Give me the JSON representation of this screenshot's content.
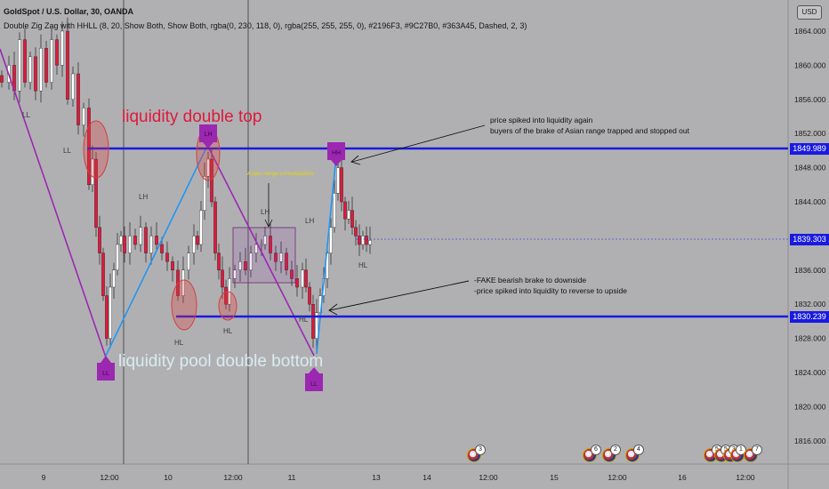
{
  "header": {
    "symbol_line": "GoldSpot / U.S. Dollar, 30, OANDA",
    "indicator_line": "Double Zig Zag with HHLL (8, 20, Show Both, Show Both, rgba(0, 230, 118, 0), rgba(255, 255, 255, 0), #2196F3, #9C27B0, #363A45, Dashed, 2, 3)"
  },
  "currency_button": "USD",
  "price_axis": {
    "ticks": [
      "1864.000",
      "1860.000",
      "1856.000",
      "1852.000",
      "1848.000",
      "1844.000",
      "1836.000",
      "1832.000",
      "1828.000",
      "1824.000",
      "1820.000",
      "1816.000"
    ],
    "resistance_label": "1849.989",
    "current_label": "1839.303",
    "support_label": "1830.239"
  },
  "time_axis": {
    "ticks": [
      "9",
      "12:00",
      "10",
      "12:00",
      "11",
      "13",
      "14",
      "12:00",
      "15",
      "12:00",
      "16",
      "12:00"
    ]
  },
  "annotations": {
    "top_title": "liquidity double top",
    "bottom_title": "liquidity pool double bottom",
    "asian_range": "Asian range consolidation",
    "note_top_line1": "price spiked into liquidity again",
    "note_top_line2": "buyers of the brake of Asian range trapped and stopped out",
    "note_bottom_line1": "-FAKE bearish brake to downside",
    "note_bottom_line2": "-price spiked into liquidity to reverse to upside"
  },
  "swing_labels": {
    "ll1": "LL",
    "ll2": "LL",
    "lh1": "LH",
    "lh2": "LH",
    "lh3": "LH",
    "hl1": "HL",
    "hl2": "HL",
    "hl3": "HL",
    "hl4": "HL",
    "box_ll1": "LL",
    "box_lh": "LH",
    "box_hh": "HH",
    "box_ll2": "LL"
  },
  "event_counts": [
    "3",
    "6",
    "2",
    "4",
    "5",
    "5",
    "3",
    "1",
    "7"
  ],
  "colors": {
    "background": "#b0b0b3",
    "candle_up": "#ffffff",
    "candle_down": "#e0193c",
    "level_line": "#1a1ae0",
    "zigzag_blue": "#2196F3",
    "zigzag_purple": "#9C27B0",
    "annotation_red": "#e0193c"
  }
}
